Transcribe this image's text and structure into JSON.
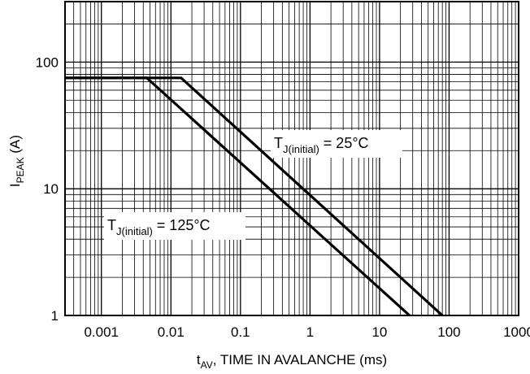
{
  "chart_data": {
    "type": "line",
    "x_scale": "log",
    "y_scale": "log",
    "xlim": [
      0.0003,
      1000
    ],
    "ylim": [
      1,
      300
    ],
    "xticks": [
      {
        "value": 0.001,
        "label": "0.001"
      },
      {
        "value": 0.01,
        "label": "0.01"
      },
      {
        "value": 0.1,
        "label": "0.1"
      },
      {
        "value": 1,
        "label": "1"
      },
      {
        "value": 10,
        "label": "10"
      },
      {
        "value": 100,
        "label": "100"
      },
      {
        "value": 1000,
        "label": "1000"
      }
    ],
    "yticks": [
      {
        "value": 1,
        "label": "1"
      },
      {
        "value": 10,
        "label": "10"
      },
      {
        "value": 100,
        "label": "100"
      }
    ],
    "xlabel": {
      "main": "t",
      "sub": "AV",
      "rest": ", TIME IN AVALANCHE (ms)"
    },
    "ylabel": {
      "main": "I",
      "sub": "PEAK",
      "rest": " (A)"
    },
    "grid": true,
    "series": [
      {
        "name": {
          "main": "T",
          "sub": "J(initial)",
          "rest": " = 25°C"
        },
        "points": [
          [
            0.0003,
            75
          ],
          [
            0.014,
            75
          ],
          [
            80,
            1
          ]
        ]
      },
      {
        "name": {
          "main": "T",
          "sub": "J(initial)",
          "rest": " = 125°C"
        },
        "points": [
          [
            0.0003,
            75
          ],
          [
            0.0045,
            75
          ],
          [
            27,
            1
          ]
        ]
      }
    ]
  }
}
